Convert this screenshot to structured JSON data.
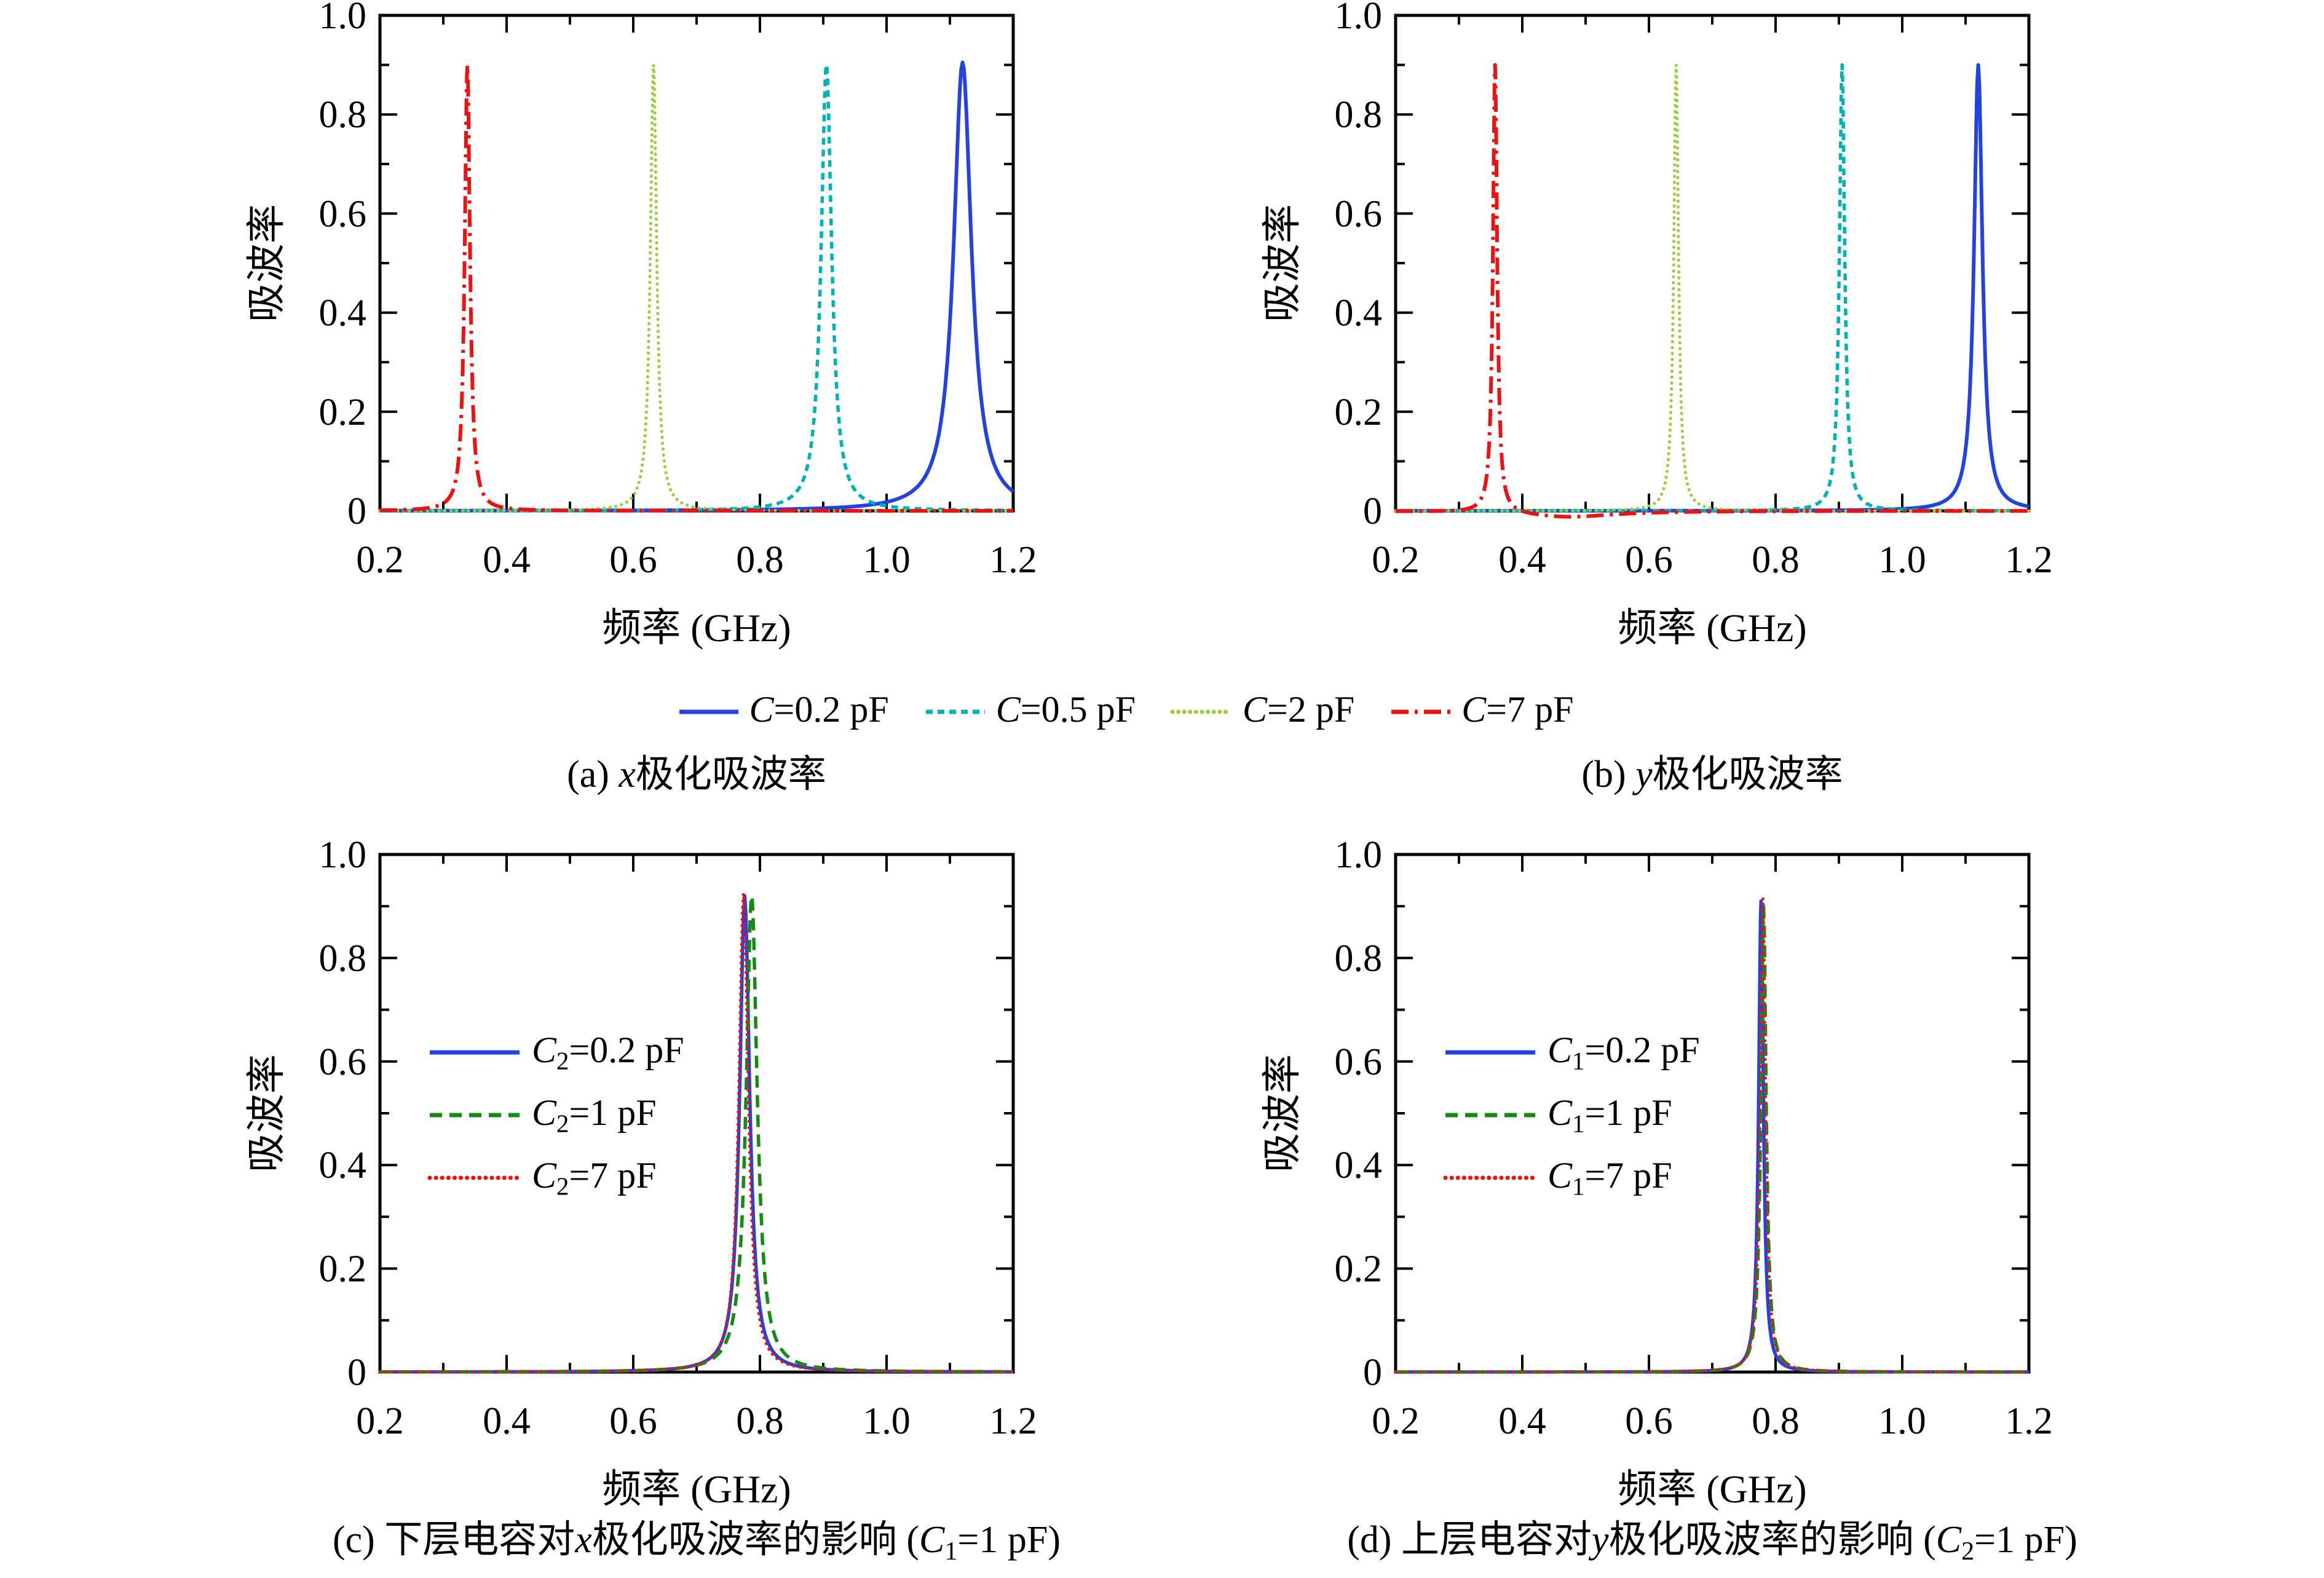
{
  "figure": {
    "background": "#ffffff",
    "axis_color": "#000000"
  },
  "axis_labels": {
    "x": "频率 (GHz)",
    "y": "吸波率"
  },
  "legend_top": {
    "items": [
      {
        "var": "C",
        "sub": "",
        "rest": "=0.2 pF",
        "color": "#2343de",
        "style": "solid"
      },
      {
        "var": "C",
        "sub": "",
        "rest": "=0.5 pF",
        "color": "#00b2b2",
        "style": "dashed"
      },
      {
        "var": "C",
        "sub": "",
        "rest": "=2 pF",
        "color": "#9ccd3f",
        "style": "fine-dotted"
      },
      {
        "var": "C",
        "sub": "",
        "rest": "=7 pF",
        "color": "#ee1111",
        "style": "dashdot"
      }
    ]
  },
  "captions": {
    "a": {
      "label": "(a) ",
      "var": "x",
      "rest": "极化吸波率"
    },
    "b": {
      "label": "(b) ",
      "var": "y",
      "rest": "极化吸波率"
    },
    "c": {
      "label": "(c) ",
      "pre": "下层电容对",
      "var": "x",
      "mid": "极化吸波率的影响 (",
      "cvar": "C",
      "csub": "1",
      "tail": "=1 pF)"
    },
    "d": {
      "label": "(d) ",
      "pre": "上层电容对",
      "var": "y",
      "mid": "极化吸波率的影响 (",
      "cvar": "C",
      "csub": "2",
      "tail": "=1 pF)"
    }
  },
  "chart_data": [
    {
      "id": "a",
      "type": "line",
      "title": "(a) x极化吸波率",
      "xlabel": "频率 (GHz)",
      "ylabel": "吸波率",
      "xlim": [
        0.2,
        1.2
      ],
      "ylim": [
        0,
        1.0
      ],
      "minor_step": 0.1,
      "grid": false,
      "xticks": [
        0.2,
        0.4,
        0.6,
        0.8,
        1.0,
        1.2
      ],
      "xtick_labels": [
        "0.2",
        "0.4",
        "0.6",
        "0.8",
        "1.0",
        "1.2"
      ],
      "yticks": [
        0,
        0.2,
        0.4,
        0.6,
        0.8,
        1.0
      ],
      "ytick_labels": [
        "0",
        "0.2",
        "0.4",
        "0.6",
        "0.8",
        "1.0"
      ],
      "legend": "shared-top",
      "series": [
        {
          "name": "C=0.2 pF",
          "label": {
            "var": "C",
            "sub": "",
            "rest": "=0.2 pF"
          },
          "color": "#2343de",
          "style": "solid",
          "width": 6,
          "model": "lorentzian",
          "peak_ghz": 1.12,
          "peak_absorption": 0.905,
          "hwhm_ghz": 0.017,
          "baseline": 0
        },
        {
          "name": "C=0.5 pF",
          "label": {
            "var": "C",
            "sub": "",
            "rest": "=0.5 pF"
          },
          "color": "#00b2b2",
          "style": "dashed",
          "width": 5.5,
          "model": "lorentzian",
          "peak_ghz": 0.905,
          "peak_absorption": 0.9,
          "hwhm_ghz": 0.01,
          "baseline": 0
        },
        {
          "name": "C=2 pF",
          "label": {
            "var": "C",
            "sub": "",
            "rest": "=2 pF"
          },
          "color": "#9ccd3f",
          "style": "fine-dotted",
          "width": 5.2,
          "model": "lorentzian",
          "peak_ghz": 0.632,
          "peak_absorption": 0.9,
          "hwhm_ghz": 0.006,
          "baseline": 0
        },
        {
          "name": "C=7 pF",
          "label": {
            "var": "C",
            "sub": "",
            "rest": "=7 pF"
          },
          "color": "#ee1111",
          "style": "dashdot",
          "width": 6,
          "model": "lorentzian",
          "peak_ghz": 0.338,
          "peak_absorption": 0.9,
          "hwhm_ghz": 0.005,
          "baseline": 0
        }
      ]
    },
    {
      "id": "b",
      "type": "line",
      "title": "(b) y极化吸波率",
      "xlabel": "频率 (GHz)",
      "ylabel": "吸波率",
      "xlim": [
        0.2,
        1.2
      ],
      "ylim": [
        0,
        1.0
      ],
      "minor_step": 0.1,
      "grid": false,
      "xticks": [
        0.2,
        0.4,
        0.6,
        0.8,
        1.0,
        1.2
      ],
      "xtick_labels": [
        "0.2",
        "0.4",
        "0.6",
        "0.8",
        "1.0",
        "1.2"
      ],
      "yticks": [
        0,
        0.2,
        0.4,
        0.6,
        0.8,
        1.0
      ],
      "ytick_labels": [
        "0",
        "0.2",
        "0.4",
        "0.6",
        "0.8",
        "1.0"
      ],
      "legend": "shared-top",
      "series": [
        {
          "name": "C=0.2 pF",
          "label": {
            "var": "C",
            "sub": "",
            "rest": "=0.2 pF"
          },
          "color": "#2343de",
          "style": "solid",
          "width": 6,
          "model": "lorentzian",
          "peak_ghz": 1.12,
          "peak_absorption": 0.9,
          "hwhm_ghz": 0.008,
          "baseline": 0
        },
        {
          "name": "C=0.5 pF",
          "label": {
            "var": "C",
            "sub": "",
            "rest": "=0.5 pF"
          },
          "color": "#00b2b2",
          "style": "dashed",
          "width": 5.5,
          "model": "lorentzian",
          "peak_ghz": 0.905,
          "peak_absorption": 0.9,
          "hwhm_ghz": 0.005,
          "baseline": 0
        },
        {
          "name": "C=2 pF",
          "label": {
            "var": "C",
            "sub": "",
            "rest": "=2 pF"
          },
          "color": "#9ccd3f",
          "style": "fine-dotted",
          "width": 5.2,
          "model": "lorentzian",
          "peak_ghz": 0.643,
          "peak_absorption": 0.9,
          "hwhm_ghz": 0.0045,
          "baseline": 0
        },
        {
          "name": "C=7 pF",
          "label": {
            "var": "C",
            "sub": "",
            "rest": "=7 pF"
          },
          "color": "#ee1111",
          "style": "dashdot",
          "width": 6,
          "model": "lorentzian",
          "peak_ghz": 0.357,
          "peak_absorption": 0.905,
          "hwhm_ghz": 0.004,
          "baseline": 0,
          "dip": {
            "center": 0.47,
            "depth": 0.013,
            "hwhm": 0.09
          }
        }
      ]
    },
    {
      "id": "c",
      "type": "line",
      "title": "(c) 下层电容对x极化吸波率的影响 (C1=1 pF)",
      "xlabel": "频率 (GHz)",
      "ylabel": "吸波率",
      "xlim": [
        0.2,
        1.2
      ],
      "ylim": [
        0,
        1.0
      ],
      "minor_step": 0.1,
      "grid": false,
      "xticks": [
        0.2,
        0.4,
        0.6,
        0.8,
        1.0,
        1.2
      ],
      "xtick_labels": [
        "0.2",
        "0.4",
        "0.6",
        "0.8",
        "1.0",
        "1.2"
      ],
      "yticks": [
        0,
        0.2,
        0.4,
        0.6,
        0.8,
        1.0
      ],
      "ytick_labels": [
        "0",
        "0.2",
        "0.4",
        "0.6",
        "0.8",
        "1.0"
      ],
      "legend": "inset-upper-left",
      "series": [
        {
          "name": "C2=0.2 pF",
          "label": {
            "var": "C",
            "sub": "2",
            "rest": "=0.2 pF"
          },
          "color": "#2343de",
          "style": "solid",
          "width": 5.5,
          "model": "lorentzian",
          "peak_ghz": 0.776,
          "peak_absorption": 0.92,
          "hwhm_ghz": 0.0095,
          "baseline": 0
        },
        {
          "name": "C2=1 pF",
          "label": {
            "var": "C",
            "sub": "2",
            "rest": "=1 pF"
          },
          "color": "#168a16",
          "style": "dashed2",
          "width": 5.5,
          "model": "lorentzian",
          "peak_ghz": 0.787,
          "peak_absorption": 0.92,
          "hwhm_ghz": 0.0105,
          "baseline": 0
        },
        {
          "name": "C2=7 pF",
          "label": {
            "var": "C",
            "sub": "2",
            "rest": "=7 pF"
          },
          "color": "#ee1111",
          "style": "dotted",
          "width": 5,
          "model": "lorentzian",
          "peak_ghz": 0.774,
          "peak_absorption": 0.925,
          "hwhm_ghz": 0.009,
          "baseline": 0
        }
      ]
    },
    {
      "id": "d",
      "type": "line",
      "title": "(d) 上层电容对y极化吸波率的影响 (C2=1 pF)",
      "xlabel": "频率 (GHz)",
      "ylabel": "吸波率",
      "xlim": [
        0.2,
        1.2
      ],
      "ylim": [
        0,
        1.0
      ],
      "minor_step": 0.1,
      "grid": false,
      "xticks": [
        0.2,
        0.4,
        0.6,
        0.8,
        1.0,
        1.2
      ],
      "xtick_labels": [
        "0.2",
        "0.4",
        "0.6",
        "0.8",
        "1.0",
        "1.2"
      ],
      "yticks": [
        0,
        0.2,
        0.4,
        0.6,
        0.8,
        1.0
      ],
      "ytick_labels": [
        "0",
        "0.2",
        "0.4",
        "0.6",
        "0.8",
        "1.0"
      ],
      "legend": "inset-upper-left",
      "series": [
        {
          "name": "C1=0.2 pF",
          "label": {
            "var": "C",
            "sub": "1",
            "rest": "=0.2 pF"
          },
          "color": "#2343de",
          "style": "solid",
          "width": 5.5,
          "model": "lorentzian",
          "peak_ghz": 0.777,
          "peak_absorption": 0.91,
          "hwhm_ghz": 0.0045,
          "baseline": 0
        },
        {
          "name": "C1=1 pF",
          "label": {
            "var": "C",
            "sub": "1",
            "rest": "=1 pF"
          },
          "color": "#168a16",
          "style": "dashed2",
          "width": 5.5,
          "model": "lorentzian",
          "peak_ghz": 0.781,
          "peak_absorption": 0.9,
          "hwhm_ghz": 0.005,
          "baseline": 0
        },
        {
          "name": "C1=7 pF",
          "label": {
            "var": "C",
            "sub": "1",
            "rest": "=7 pF"
          },
          "color": "#ee1111",
          "style": "dotted",
          "width": 5,
          "model": "lorentzian",
          "peak_ghz": 0.78,
          "peak_absorption": 0.915,
          "hwhm_ghz": 0.005,
          "baseline": 0
        }
      ]
    }
  ]
}
